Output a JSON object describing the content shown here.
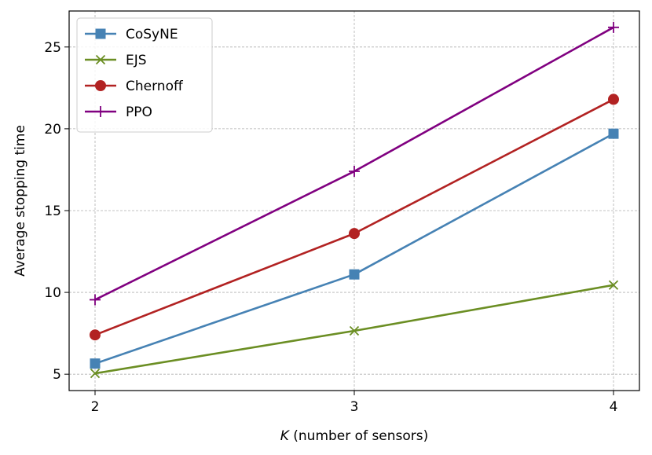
{
  "chart_data": {
    "type": "line",
    "title": "",
    "xlabel_var": "K",
    "xlabel_rest": " (number of sensors)",
    "ylabel": "Average stopping time",
    "x": [
      2,
      3,
      4
    ],
    "xlim": [
      1.9,
      4.1
    ],
    "ylim": [
      4.0,
      27.2
    ],
    "xticks": [
      2,
      3,
      4
    ],
    "yticks": [
      5,
      10,
      15,
      20,
      25
    ],
    "grid": true,
    "legend_position": "top-left",
    "series": [
      {
        "name": "CoSyNE",
        "values": [
          5.65,
          11.1,
          19.7
        ],
        "color": "#4682b4",
        "marker": "square"
      },
      {
        "name": "EJS",
        "values": [
          5.05,
          7.65,
          10.45
        ],
        "color": "#6b8e23",
        "marker": "x"
      },
      {
        "name": "Chernoff",
        "values": [
          7.4,
          13.6,
          21.8
        ],
        "color": "#b22222",
        "marker": "circle"
      },
      {
        "name": "PPO",
        "values": [
          9.55,
          17.4,
          26.2
        ],
        "color": "#800080",
        "marker": "plus"
      }
    ]
  }
}
